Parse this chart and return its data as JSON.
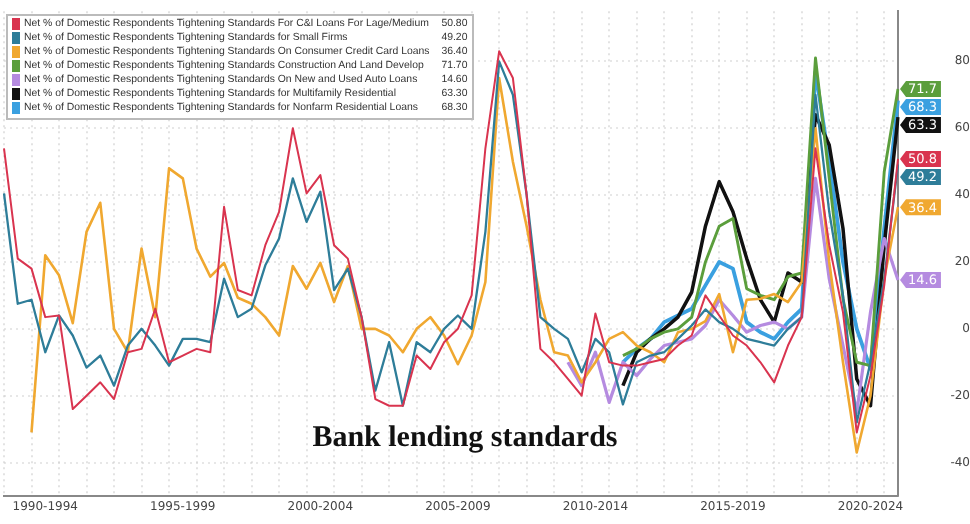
{
  "chart_data": {
    "type": "line",
    "title": "Bank lending standards",
    "categories": [
      null,
      null,
      null,
      "1990-1994",
      null,
      null,
      null,
      null,
      null,
      null,
      null,
      null,
      null,
      "1995-1999",
      null,
      null,
      null,
      null,
      null,
      null,
      null,
      null,
      null,
      "2000-2004",
      null,
      null,
      null,
      null,
      null,
      null,
      null,
      null,
      null,
      "2005-2009",
      null,
      null,
      null,
      null,
      null,
      null,
      null,
      null,
      null,
      "2010-2014",
      null,
      null,
      null,
      null,
      null,
      null,
      null,
      null,
      null,
      "2015-2019",
      null,
      null,
      null,
      null,
      null,
      null,
      null,
      null,
      null,
      "2020-2024",
      null,
      null
    ],
    "ylim": [
      -50,
      95
    ],
    "yticks": [
      -40,
      -20,
      0,
      20,
      40,
      60,
      80
    ],
    "annotations": [
      "50.80",
      "49.20",
      "36.40",
      "71.70",
      "14.60",
      "63.30",
      "68.30"
    ],
    "grid": true,
    "legend": "top left",
    "marker": "none",
    "line_style": "solid",
    "series": [
      {
        "name": "Net % of Domestic Respondents Tightening Standards For C&I Loans For Lage/Medium",
        "color": "#d9344f",
        "values": [
          54,
          21,
          18,
          3.5,
          4,
          -24,
          -20,
          -16,
          -21,
          -7,
          -6,
          6,
          -10,
          -8,
          -6,
          -7,
          36.5,
          11.6,
          10,
          25,
          35,
          60,
          40.5,
          46,
          25,
          21,
          3.5,
          -21,
          -23,
          -23,
          -8,
          -12,
          -4,
          0,
          10,
          54,
          83,
          75,
          40,
          -6,
          -10,
          -15,
          -20,
          4.6,
          -10,
          -11,
          -11,
          -10,
          -9,
          -5,
          -2,
          10,
          4,
          -2,
          -5,
          -10,
          -16,
          -5,
          3.5,
          54,
          25,
          5,
          -31,
          -14,
          13,
          50.8
        ],
        "value_labels": [
          null,
          null,
          null,
          null,
          null,
          null,
          null,
          null,
          null,
          null,
          null,
          null,
          null,
          null,
          null,
          null,
          null,
          null,
          null,
          null,
          null,
          null,
          null,
          null,
          null,
          null,
          null,
          null,
          null,
          null,
          null,
          null,
          null,
          null,
          null,
          null,
          null,
          null,
          null,
          null,
          null,
          null,
          null,
          null,
          null,
          null,
          null,
          null,
          null,
          null,
          null,
          null,
          null,
          null,
          null,
          null,
          null,
          null,
          null,
          null,
          null,
          null,
          null,
          null,
          null,
          "50.8"
        ]
      },
      {
        "name": "Net % of Domestic Respondents Tightening Standards for Small Firms",
        "color": "#2e7d99",
        "values": [
          40.5,
          7.5,
          8.7,
          -7,
          4,
          -2,
          -11.6,
          -8,
          -17,
          -5,
          0,
          -5,
          -11,
          -3,
          -3,
          -4,
          15,
          3.5,
          6,
          19,
          27,
          45,
          32,
          41,
          11.6,
          18,
          3.5,
          -18.5,
          -4,
          -23,
          -4,
          -7,
          0,
          4,
          0,
          29,
          80,
          70,
          40,
          3.5,
          0,
          -3,
          -13,
          -3,
          -7,
          -22.6,
          -10,
          -8,
          -7,
          -3,
          1,
          5.8,
          2,
          0,
          -3,
          -4,
          -5,
          0,
          3.5,
          70,
          35,
          10,
          -28,
          -10,
          15,
          49.2
        ],
        "value_labels": [
          null,
          null,
          null,
          null,
          null,
          null,
          null,
          null,
          null,
          null,
          null,
          null,
          null,
          null,
          null,
          null,
          null,
          null,
          null,
          null,
          null,
          null,
          null,
          null,
          null,
          null,
          null,
          null,
          null,
          null,
          null,
          null,
          null,
          null,
          null,
          null,
          null,
          null,
          null,
          null,
          null,
          null,
          null,
          null,
          null,
          null,
          null,
          null,
          null,
          null,
          null,
          null,
          null,
          null,
          null,
          null,
          null,
          null,
          null,
          null,
          null,
          null,
          null,
          null,
          null,
          "49.2"
        ]
      },
      {
        "name": "Net % of Domestic Respondents Tightening Standards On Consumer Credit Card Loans",
        "color": "#f0a830",
        "values": [
          null,
          null,
          -31,
          22,
          16,
          1.7,
          29,
          37.7,
          0,
          -7,
          24,
          3.5,
          48,
          45,
          24,
          15.6,
          19.7,
          9.3,
          7.5,
          3.5,
          -2,
          18.8,
          12,
          19.7,
          8,
          18.8,
          0,
          0,
          -2,
          -7,
          0,
          3.5,
          -2,
          -10.6,
          -2,
          14,
          75,
          50,
          30.7,
          8.7,
          -7,
          -8,
          -16,
          -10,
          -3,
          -1,
          -5,
          -7,
          -10,
          -1,
          0,
          2.3,
          10.4,
          -7,
          8.7,
          9,
          10.4,
          8,
          14,
          60,
          20,
          -10,
          -37,
          -20,
          15,
          36.4
        ],
        "value_labels": [
          null,
          null,
          null,
          null,
          null,
          null,
          null,
          null,
          null,
          null,
          null,
          null,
          null,
          null,
          null,
          null,
          null,
          null,
          null,
          null,
          null,
          null,
          null,
          null,
          null,
          null,
          null,
          null,
          null,
          null,
          null,
          null,
          null,
          null,
          null,
          null,
          null,
          null,
          null,
          null,
          null,
          null,
          null,
          null,
          null,
          null,
          null,
          null,
          null,
          null,
          null,
          null,
          null,
          null,
          null,
          null,
          null,
          null,
          null,
          null,
          null,
          null,
          null,
          null,
          null,
          "36.4"
        ]
      },
      {
        "name": "Net % of Domestic Respondents Tightening Standards Construction And Land Develop",
        "color": "#5b9e3c",
        "values": [
          null,
          null,
          null,
          null,
          null,
          null,
          null,
          null,
          null,
          null,
          null,
          null,
          null,
          null,
          null,
          null,
          null,
          null,
          null,
          null,
          null,
          null,
          null,
          null,
          null,
          null,
          null,
          null,
          null,
          null,
          null,
          null,
          null,
          null,
          null,
          null,
          null,
          null,
          null,
          null,
          null,
          null,
          null,
          null,
          null,
          -8,
          -6,
          -3,
          -1,
          0,
          3.5,
          20,
          30.7,
          33,
          12,
          10,
          8.7,
          15.6,
          16.7,
          81,
          45,
          9,
          -10,
          -11,
          47,
          71.7
        ],
        "value_labels": [
          null,
          null,
          null,
          null,
          null,
          null,
          null,
          null,
          null,
          null,
          null,
          null,
          null,
          null,
          null,
          null,
          null,
          null,
          null,
          null,
          null,
          null,
          null,
          null,
          null,
          null,
          null,
          null,
          null,
          null,
          null,
          null,
          null,
          null,
          null,
          null,
          null,
          null,
          null,
          null,
          null,
          null,
          null,
          null,
          null,
          null,
          null,
          null,
          null,
          null,
          null,
          null,
          null,
          null,
          null,
          null,
          null,
          null,
          null,
          null,
          null,
          null,
          null,
          null,
          null,
          "71.7"
        ]
      },
      {
        "name": "Net % of Domestic Respondents Tightening Standards On New and Used Auto Loans",
        "color": "#b58be0",
        "values": [
          null,
          null,
          null,
          null,
          null,
          null,
          null,
          null,
          null,
          null,
          null,
          null,
          null,
          null,
          null,
          null,
          null,
          null,
          null,
          null,
          null,
          null,
          null,
          null,
          null,
          null,
          null,
          null,
          null,
          null,
          null,
          null,
          null,
          null,
          null,
          null,
          null,
          null,
          null,
          null,
          null,
          -10,
          -17,
          -7,
          -22,
          -10,
          -14,
          -9,
          -5,
          -4,
          -3,
          1,
          8.7,
          4,
          -1,
          1,
          2,
          0,
          3.5,
          45,
          15,
          -5,
          -25,
          5,
          27,
          14.6
        ],
        "value_labels": [
          null,
          null,
          null,
          null,
          null,
          null,
          null,
          null,
          null,
          null,
          null,
          null,
          null,
          null,
          null,
          null,
          null,
          null,
          null,
          null,
          null,
          null,
          null,
          null,
          null,
          null,
          null,
          null,
          null,
          null,
          null,
          null,
          null,
          null,
          null,
          null,
          null,
          null,
          null,
          null,
          null,
          null,
          null,
          null,
          null,
          null,
          null,
          null,
          null,
          null,
          null,
          null,
          null,
          null,
          null,
          null,
          null,
          null,
          null,
          null,
          null,
          null,
          null,
          null,
          null,
          "14.6"
        ]
      },
      {
        "name": "Net % of Domestic Respondents Tightening Standards for Multifamily Residential",
        "color": "#111111",
        "values": [
          null,
          null,
          null,
          null,
          null,
          null,
          null,
          null,
          null,
          null,
          null,
          null,
          null,
          null,
          null,
          null,
          null,
          null,
          null,
          null,
          null,
          null,
          null,
          null,
          null,
          null,
          null,
          null,
          null,
          null,
          null,
          null,
          null,
          null,
          null,
          null,
          null,
          null,
          null,
          null,
          null,
          null,
          null,
          null,
          null,
          -17,
          -7,
          -3,
          0,
          3.5,
          11,
          30.7,
          44,
          35,
          21,
          8.7,
          2,
          16.7,
          14,
          64,
          55,
          30,
          -15,
          -23,
          25,
          63.3
        ],
        "value_labels": [
          null,
          null,
          null,
          null,
          null,
          null,
          null,
          null,
          null,
          null,
          null,
          null,
          null,
          null,
          null,
          null,
          null,
          null,
          null,
          null,
          null,
          null,
          null,
          null,
          null,
          null,
          null,
          null,
          null,
          null,
          null,
          null,
          null,
          null,
          null,
          null,
          null,
          null,
          null,
          null,
          null,
          null,
          null,
          null,
          null,
          null,
          null,
          null,
          null,
          null,
          null,
          null,
          null,
          null,
          null,
          null,
          null,
          null,
          null,
          null,
          null,
          null,
          null,
          null,
          null,
          "63.3"
        ]
      },
      {
        "name": "Net % of Domestic Respondents Tightening Standards for Nonfarm Residential Loans",
        "color": "#3aa0e0",
        "values": [
          null,
          null,
          null,
          null,
          null,
          null,
          null,
          null,
          null,
          null,
          null,
          null,
          null,
          null,
          null,
          null,
          null,
          null,
          null,
          null,
          null,
          null,
          null,
          null,
          null,
          null,
          null,
          null,
          null,
          null,
          null,
          null,
          null,
          null,
          null,
          null,
          null,
          null,
          null,
          null,
          null,
          null,
          null,
          null,
          null,
          -10,
          -6,
          -3,
          2,
          4,
          6,
          13,
          20,
          18,
          2,
          -1,
          -3,
          2,
          6,
          77,
          50,
          20,
          0,
          -12,
          30,
          68.3
        ],
        "value_labels": [
          null,
          null,
          null,
          null,
          null,
          null,
          null,
          null,
          null,
          null,
          null,
          null,
          null,
          null,
          null,
          null,
          null,
          null,
          null,
          null,
          null,
          null,
          null,
          null,
          null,
          null,
          null,
          null,
          null,
          null,
          null,
          null,
          null,
          null,
          null,
          null,
          null,
          null,
          null,
          null,
          null,
          null,
          null,
          null,
          null,
          null,
          null,
          null,
          null,
          null,
          null,
          null,
          null,
          null,
          null,
          null,
          null,
          null,
          null,
          null,
          null,
          null,
          null,
          null,
          null,
          "68.3"
        ]
      }
    ]
  }
}
